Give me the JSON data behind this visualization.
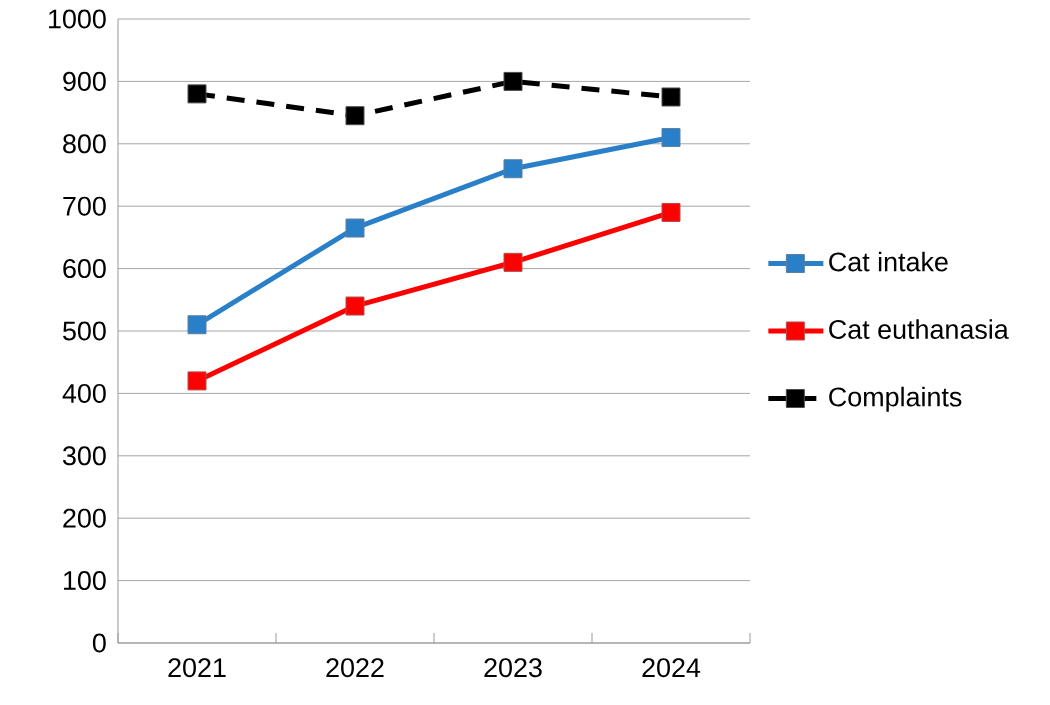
{
  "chart_data": {
    "type": "line",
    "categories": [
      "2021",
      "2022",
      "2023",
      "2024"
    ],
    "series": [
      {
        "name": "Cat intake",
        "color": "#2a7fc9",
        "values": [
          510,
          665,
          760,
          810
        ],
        "line_style": "solid"
      },
      {
        "name": "Cat euthanasia",
        "color": "#ff0000",
        "values": [
          420,
          540,
          610,
          690
        ],
        "line_style": "solid"
      },
      {
        "name": "Complaints",
        "color": "#000000",
        "values": [
          880,
          845,
          900,
          875
        ],
        "line_style": "dashed"
      }
    ],
    "ylim": [
      0,
      1000
    ],
    "yticks": [
      0,
      100,
      200,
      300,
      400,
      500,
      600,
      700,
      800,
      900,
      1000
    ],
    "grid": "y",
    "legend": "right",
    "marker": "square"
  }
}
